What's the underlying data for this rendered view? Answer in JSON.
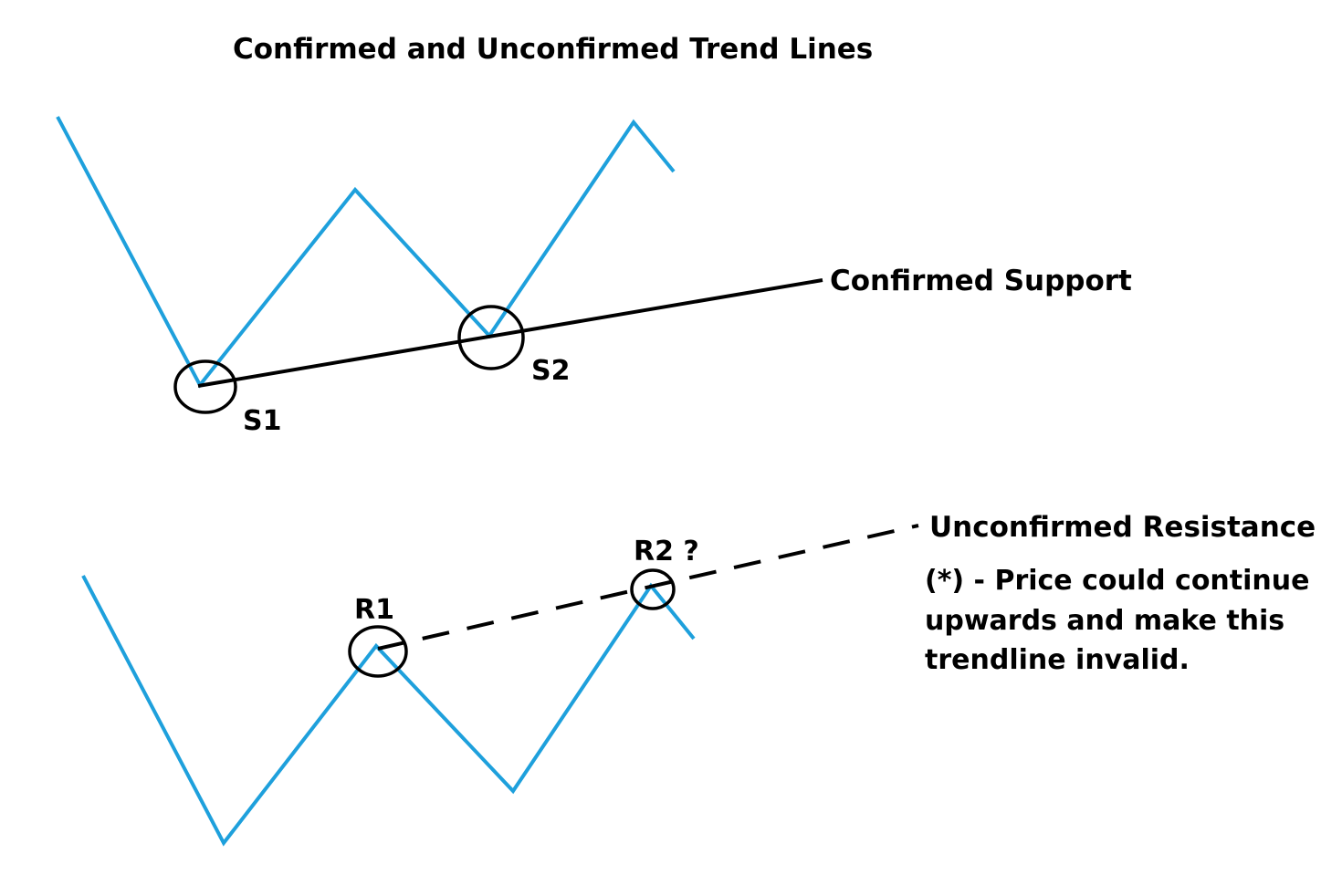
{
  "title": "Confirmed and Unconfirmed Trend Lines",
  "colors": {
    "price_line": "#1ea0dc",
    "trend_line": "#000000",
    "text": "#000000",
    "background": "#ffffff"
  },
  "top_panel": {
    "trend_label": "Confirmed Support",
    "point_1": "S1",
    "point_2": "S2"
  },
  "bottom_panel": {
    "trend_label": "Unconfirmed Resistance",
    "point_1": "R1",
    "point_2": "R2 ?",
    "note_lines": [
      "(*) - Price could continue",
      "upwards and make this",
      "trendline invalid."
    ]
  }
}
